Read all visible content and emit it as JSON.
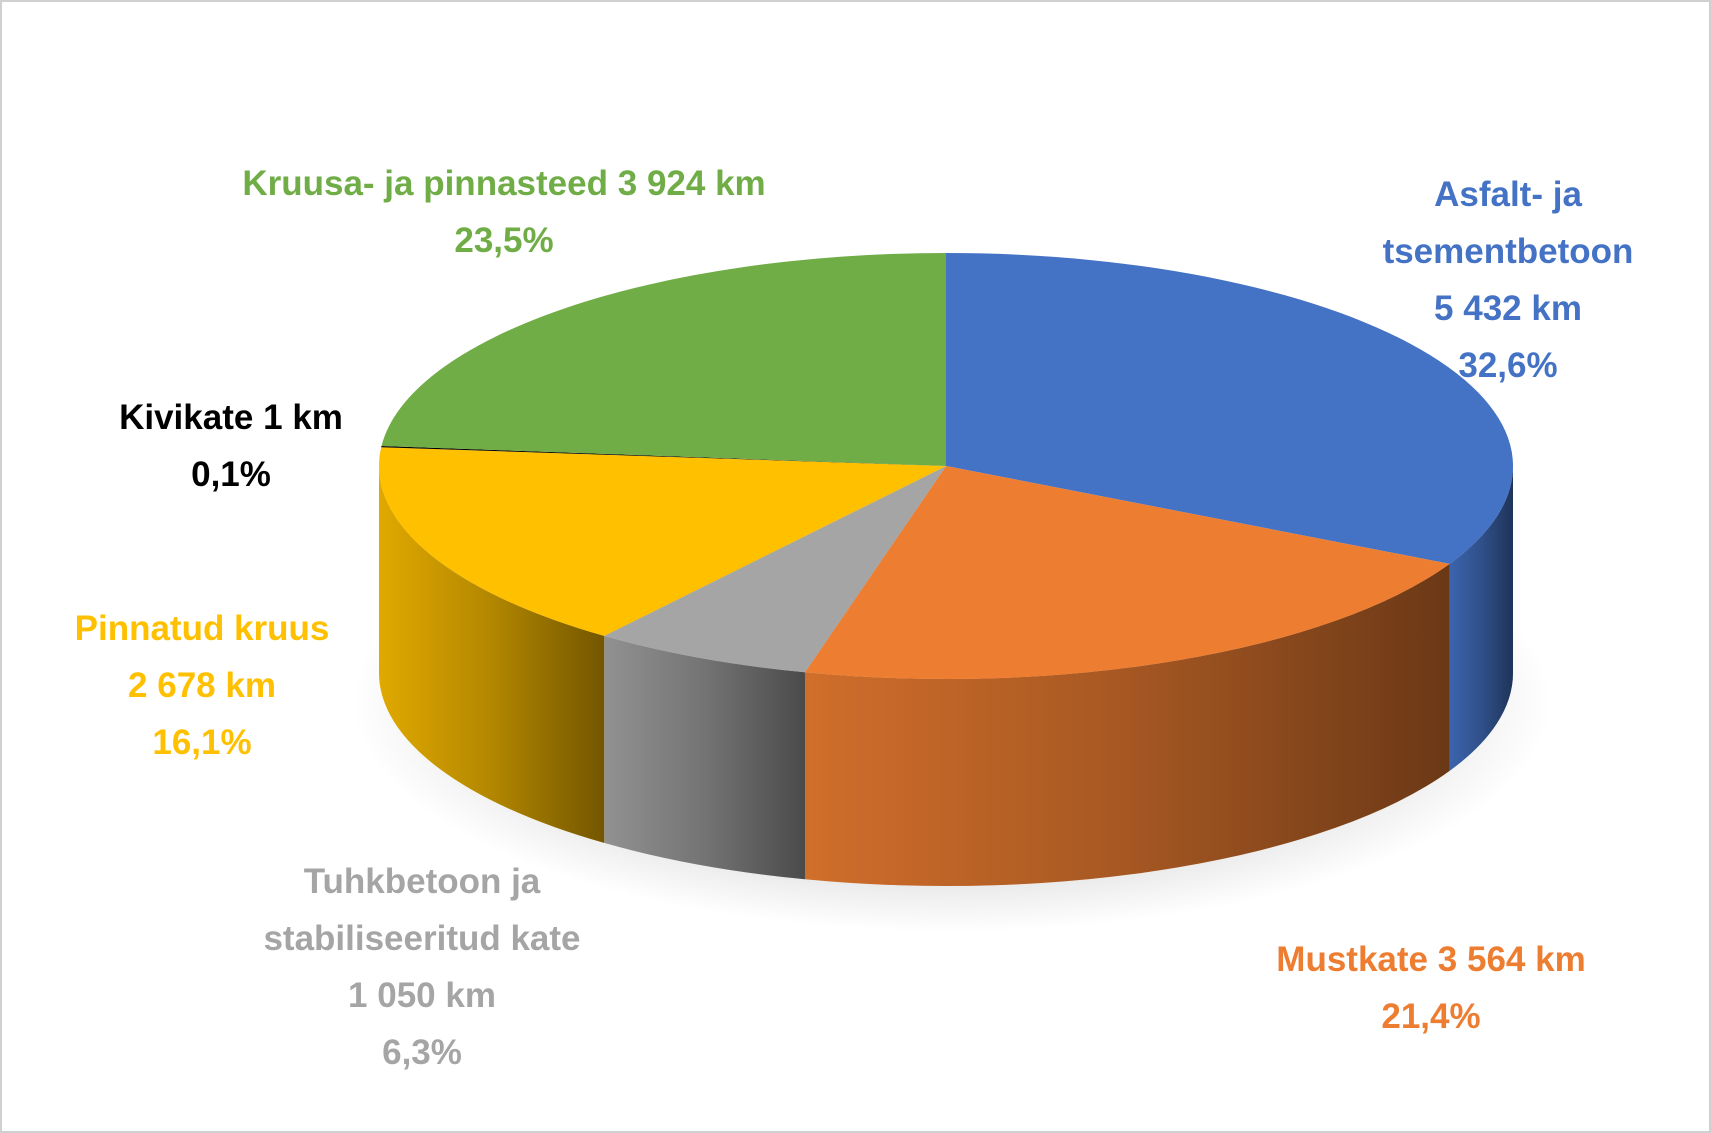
{
  "chart_data": {
    "type": "pie",
    "categories": [
      "Asfalt- ja tsementbetoon",
      "Mustkate",
      "Tuhkbetoon ja stabiliseeritud kate",
      "Pinnatud kruus",
      "Kivikate",
      "Kruusa- ja pinnasteed"
    ],
    "values": [
      32.6,
      21.4,
      6.3,
      16.1,
      0.1,
      23.5
    ],
    "value_labels": [
      "32,6%",
      "21,4%",
      "6,3%",
      "16,1%",
      "0,1%",
      "23,5%"
    ],
    "lengths": [
      5432,
      3564,
      1050,
      2678,
      1,
      3924
    ],
    "length_labels": [
      "5 432 km",
      "3 564 km",
      "1 050 km",
      "2 678 km",
      "1 km",
      "3 924 km"
    ],
    "colors": [
      "#4472c4",
      "#ed7d31",
      "#a5a5a5",
      "#ffc000",
      "#000000",
      "#70ad47"
    ]
  }
}
